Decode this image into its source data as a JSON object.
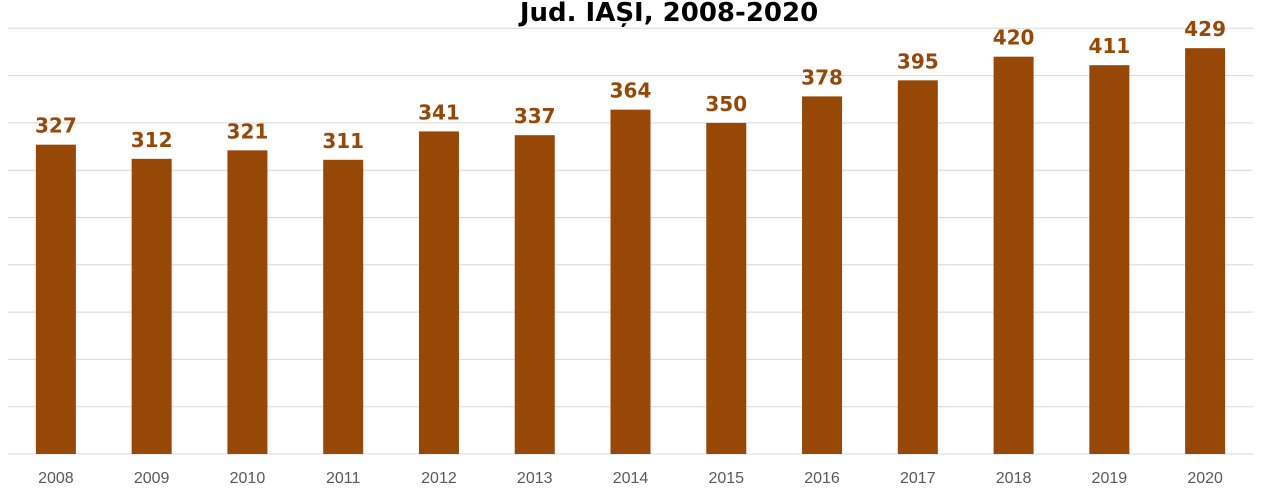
{
  "chart_data": {
    "type": "bar",
    "title": "Jud. IAȘI, 2008-2020",
    "xlabel": "",
    "ylabel": "",
    "categories": [
      "2008",
      "2009",
      "2010",
      "2011",
      "2012",
      "2013",
      "2014",
      "2015",
      "2016",
      "2017",
      "2018",
      "2019",
      "2020"
    ],
    "values": [
      327,
      312,
      321,
      311,
      341,
      337,
      364,
      350,
      378,
      395,
      420,
      411,
      429
    ],
    "ylim": [
      0,
      450
    ],
    "grid": true,
    "gridline_step": 50,
    "data_labels": true,
    "legend": "none",
    "colors": {
      "bar": "#974706",
      "label": "#974706",
      "grid": "#d9d9d9",
      "tick": "#595959"
    }
  }
}
